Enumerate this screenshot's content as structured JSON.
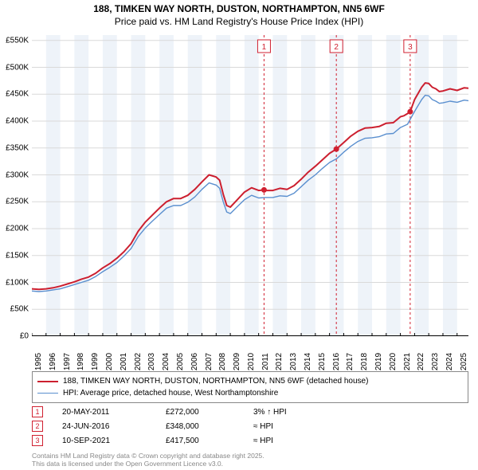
{
  "title": {
    "line1": "188, TIMKEN WAY NORTH, DUSTON, NORTHAMPTON, NN5 6WF",
    "line2": "Price paid vs. HM Land Registry's House Price Index (HPI)"
  },
  "chart": {
    "type": "line",
    "background_color": "#ffffff",
    "grid_color": "#d9d9d9",
    "axis_color": "#000000",
    "alt_band_color": "#eef3f9",
    "xlim": [
      1995,
      2025.8
    ],
    "ylim": [
      0,
      560000
    ],
    "ytick_step": 50000,
    "ytick_labels": [
      "£0",
      "£50K",
      "£100K",
      "£150K",
      "£200K",
      "£250K",
      "£300K",
      "£350K",
      "£400K",
      "£450K",
      "£500K",
      "£550K"
    ],
    "xtick_step": 1,
    "xtick_labels": [
      "1995",
      "1996",
      "1997",
      "1998",
      "1999",
      "2000",
      "2001",
      "2002",
      "2003",
      "2004",
      "2005",
      "2006",
      "2007",
      "2008",
      "2009",
      "2010",
      "2011",
      "2012",
      "2013",
      "2014",
      "2015",
      "2016",
      "2017",
      "2018",
      "2019",
      "2020",
      "2021",
      "2022",
      "2023",
      "2024",
      "2025"
    ],
    "label_fontsize": 10,
    "sale_marker_line_color": "#d02030",
    "sale_marker_dash": "3,3",
    "series": [
      {
        "name": "property",
        "label": "188, TIMKEN WAY NORTH, DUSTON, NORTHAMPTON, NN5 6WF (detached house)",
        "color": "#cc1f2f",
        "line_width": 2.0,
        "points": [
          [
            1995,
            88000
          ],
          [
            1995.5,
            87000
          ],
          [
            1996,
            88000
          ],
          [
            1996.5,
            90000
          ],
          [
            1997,
            93000
          ],
          [
            1997.5,
            97000
          ],
          [
            1998,
            101000
          ],
          [
            1998.5,
            106000
          ],
          [
            1999,
            110000
          ],
          [
            1999.5,
            117000
          ],
          [
            2000,
            127000
          ],
          [
            2000.5,
            135000
          ],
          [
            2001,
            145000
          ],
          [
            2001.5,
            157000
          ],
          [
            2002,
            172000
          ],
          [
            2002.5,
            195000
          ],
          [
            2003,
            212000
          ],
          [
            2003.5,
            225000
          ],
          [
            2004,
            238000
          ],
          [
            2004.5,
            250000
          ],
          [
            2005,
            256000
          ],
          [
            2005.5,
            256000
          ],
          [
            2006,
            262000
          ],
          [
            2006.5,
            273000
          ],
          [
            2007,
            287000
          ],
          [
            2007.5,
            300000
          ],
          [
            2008,
            296000
          ],
          [
            2008.25,
            290000
          ],
          [
            2008.5,
            264000
          ],
          [
            2008.75,
            243000
          ],
          [
            2009,
            240000
          ],
          [
            2009.5,
            254000
          ],
          [
            2010,
            268000
          ],
          [
            2010.5,
            276000
          ],
          [
            2011,
            271000
          ],
          [
            2011.38,
            272000
          ],
          [
            2011.5,
            271000
          ],
          [
            2012,
            271000
          ],
          [
            2012.5,
            275000
          ],
          [
            2013,
            273000
          ],
          [
            2013.5,
            280000
          ],
          [
            2014,
            292000
          ],
          [
            2014.5,
            305000
          ],
          [
            2015,
            316000
          ],
          [
            2015.5,
            328000
          ],
          [
            2016,
            340000
          ],
          [
            2016.48,
            348000
          ],
          [
            2017,
            360000
          ],
          [
            2017.5,
            372000
          ],
          [
            2018,
            381000
          ],
          [
            2018.5,
            387000
          ],
          [
            2019,
            388000
          ],
          [
            2019.5,
            390000
          ],
          [
            2020,
            396000
          ],
          [
            2020.5,
            397000
          ],
          [
            2021,
            408000
          ],
          [
            2021.25,
            410000
          ],
          [
            2021.5,
            414000
          ],
          [
            2021.69,
            417500
          ],
          [
            2022,
            440000
          ],
          [
            2022.5,
            463000
          ],
          [
            2022.75,
            471000
          ],
          [
            2023,
            470000
          ],
          [
            2023.25,
            463000
          ],
          [
            2023.5,
            460000
          ],
          [
            2023.75,
            455000
          ],
          [
            2024,
            456000
          ],
          [
            2024.5,
            460000
          ],
          [
            2025,
            457000
          ],
          [
            2025.5,
            462000
          ],
          [
            2025.8,
            461000
          ]
        ]
      },
      {
        "name": "hpi",
        "label": "HPI: Average price, detached house, West Northamptonshire",
        "color": "#5a8fcf",
        "line_width": 1.4,
        "points": [
          [
            1995,
            84000
          ],
          [
            1995.5,
            83000
          ],
          [
            1996,
            84000
          ],
          [
            1996.5,
            86000
          ],
          [
            1997,
            88000
          ],
          [
            1997.5,
            92000
          ],
          [
            1998,
            96000
          ],
          [
            1998.5,
            100000
          ],
          [
            1999,
            104000
          ],
          [
            1999.5,
            111000
          ],
          [
            2000,
            120000
          ],
          [
            2000.5,
            128000
          ],
          [
            2001,
            137000
          ],
          [
            2001.5,
            149000
          ],
          [
            2002,
            163000
          ],
          [
            2002.5,
            185000
          ],
          [
            2003,
            201000
          ],
          [
            2003.5,
            214000
          ],
          [
            2004,
            226000
          ],
          [
            2004.5,
            238000
          ],
          [
            2005,
            243000
          ],
          [
            2005.5,
            243000
          ],
          [
            2006,
            249000
          ],
          [
            2006.5,
            259000
          ],
          [
            2007,
            273000
          ],
          [
            2007.5,
            285000
          ],
          [
            2008,
            281000
          ],
          [
            2008.25,
            275000
          ],
          [
            2008.5,
            250000
          ],
          [
            2008.75,
            231000
          ],
          [
            2009,
            228000
          ],
          [
            2009.5,
            241000
          ],
          [
            2010,
            254000
          ],
          [
            2010.5,
            262000
          ],
          [
            2011,
            257000
          ],
          [
            2011.5,
            258000
          ],
          [
            2012,
            258000
          ],
          [
            2012.5,
            261000
          ],
          [
            2013,
            260000
          ],
          [
            2013.5,
            266000
          ],
          [
            2014,
            278000
          ],
          [
            2014.5,
            290000
          ],
          [
            2015,
            300000
          ],
          [
            2015.5,
            312000
          ],
          [
            2016,
            323000
          ],
          [
            2016.5,
            330000
          ],
          [
            2017,
            342000
          ],
          [
            2017.5,
            353000
          ],
          [
            2018,
            362000
          ],
          [
            2018.5,
            368000
          ],
          [
            2019,
            369000
          ],
          [
            2019.5,
            371000
          ],
          [
            2020,
            376000
          ],
          [
            2020.5,
            377000
          ],
          [
            2021,
            388000
          ],
          [
            2021.5,
            394000
          ],
          [
            2022,
            418000
          ],
          [
            2022.5,
            440000
          ],
          [
            2022.75,
            448000
          ],
          [
            2023,
            447000
          ],
          [
            2023.25,
            440000
          ],
          [
            2023.5,
            437000
          ],
          [
            2023.75,
            433000
          ],
          [
            2024,
            434000
          ],
          [
            2024.5,
            437000
          ],
          [
            2025,
            435000
          ],
          [
            2025.5,
            439000
          ],
          [
            2025.8,
            438000
          ]
        ]
      }
    ],
    "sale_markers": [
      {
        "n": "1",
        "x": 2011.38,
        "y": 272000,
        "color": "#d02030"
      },
      {
        "n": "2",
        "x": 2016.48,
        "y": 348000,
        "color": "#d02030"
      },
      {
        "n": "3",
        "x": 2021.69,
        "y": 417500,
        "color": "#d02030"
      }
    ]
  },
  "legend": {
    "items": [
      {
        "color": "#cc1f2f",
        "width": 2.0,
        "label": "188, TIMKEN WAY NORTH, DUSTON, NORTHAMPTON, NN5 6WF (detached house)"
      },
      {
        "color": "#5a8fcf",
        "width": 1.4,
        "label": "HPI: Average price, detached house, West Northamptonshire"
      }
    ]
  },
  "sales": [
    {
      "n": "1",
      "marker_color": "#d02030",
      "date": "20-MAY-2011",
      "price": "£272,000",
      "hpi": "3% ↑ HPI"
    },
    {
      "n": "2",
      "marker_color": "#d02030",
      "date": "24-JUN-2016",
      "price": "£348,000",
      "hpi": "≈ HPI"
    },
    {
      "n": "3",
      "marker_color": "#d02030",
      "date": "10-SEP-2021",
      "price": "£417,500",
      "hpi": "≈ HPI"
    }
  ],
  "footer": {
    "line1": "Contains HM Land Registry data © Crown copyright and database right 2025.",
    "line2": "This data is licensed under the Open Government Licence v3.0."
  }
}
